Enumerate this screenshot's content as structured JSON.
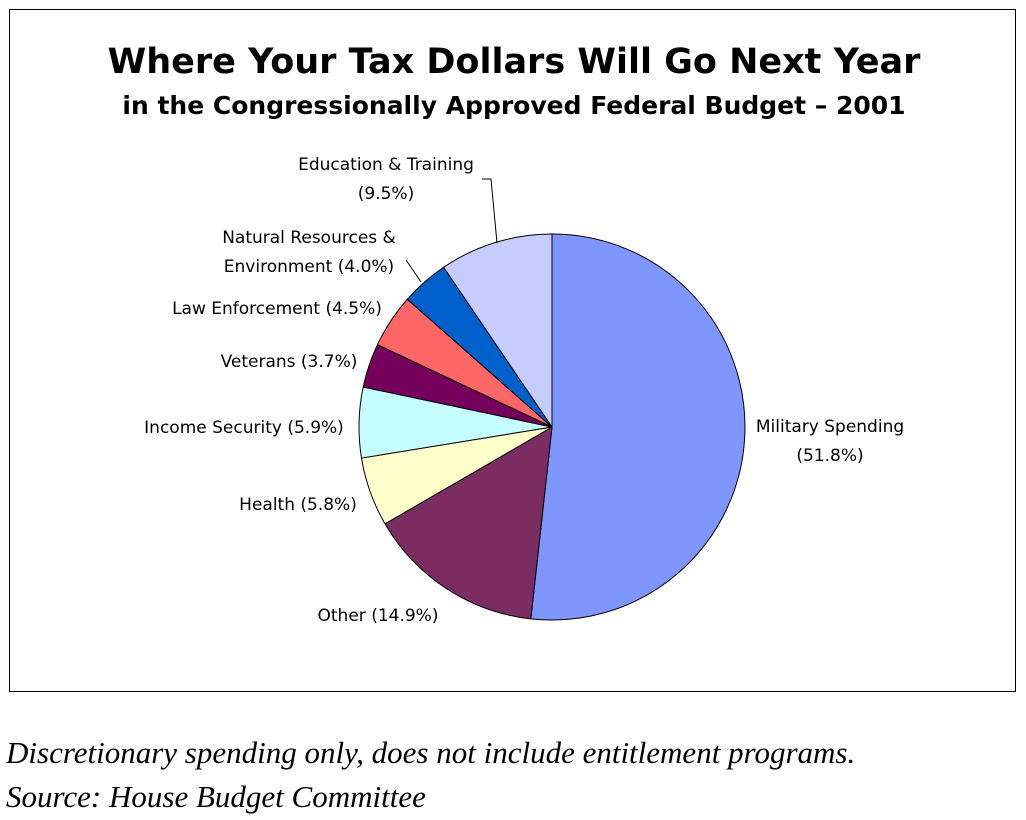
{
  "chart_data": {
    "type": "pie",
    "title": "Where Your Tax Dollars Will Go Next Year",
    "subtitle": "in the Congressionally Approved Federal Budget – 2001",
    "start_angle_deg": 0,
    "direction": "clockwise",
    "slices": [
      {
        "label_lines": [
          "Military Spending",
          "(51.8%)"
        ],
        "value": 51.8,
        "color": "#8096ff"
      },
      {
        "label_lines": [
          "Other (14.9%)"
        ],
        "value": 14.9,
        "color": "#7b2d62"
      },
      {
        "label_lines": [
          "Health (5.8%)"
        ],
        "value": 5.8,
        "color": "#ffffcc"
      },
      {
        "label_lines": [
          "Income Security (5.9%)"
        ],
        "value": 5.9,
        "color": "#c6ffff"
      },
      {
        "label_lines": [
          "Veterans (3.7%)"
        ],
        "value": 3.7,
        "color": "#75005c"
      },
      {
        "label_lines": [
          "Law Enforcement (4.5%)"
        ],
        "value": 4.5,
        "color": "#ff6666"
      },
      {
        "label_lines": [
          "Natural Resources &",
          "Environment (4.0%)"
        ],
        "value": 4.0,
        "color": "#0060cc"
      },
      {
        "label_lines": [
          "Education & Training",
          "(9.5%)"
        ],
        "value": 9.5,
        "color": "#c6ccff"
      }
    ]
  },
  "footnotes": {
    "line1": "Discretionary spending only, does not include entitlement programs.",
    "line2": "Source: House Budget Committee"
  }
}
